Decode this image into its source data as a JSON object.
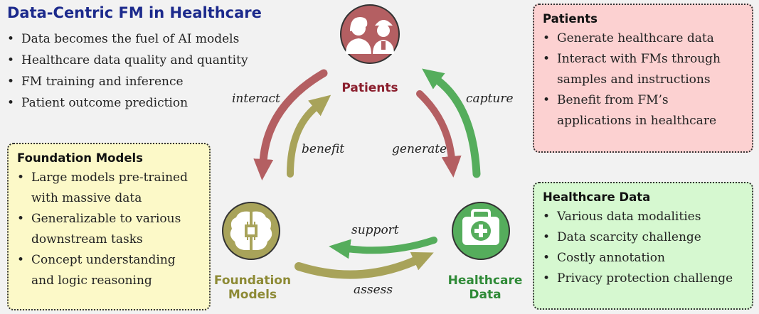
{
  "title": "Data-Centric FM in Healthcare",
  "intro": [
    "Data becomes the fuel of AI models",
    "Healthcare data quality and quantity",
    "FM training and inference",
    "Patient outcome prediction"
  ],
  "nodes": {
    "patients": "Patients",
    "fm_line1": "Foundation",
    "fm_line2": "Models",
    "hd_line1": "Healthcare",
    "hd_line2": "Data"
  },
  "edge_labels": {
    "interact": "interact",
    "benefit": "benefit",
    "generate": "generate",
    "capture": "capture",
    "support": "support",
    "assess": "assess"
  },
  "boxes": {
    "patients": {
      "title": "Patients",
      "items": [
        "Generate healthcare data",
        "Interact with FMs through samples and instructions",
        "Benefit from FM’s applications in healthcare"
      ]
    },
    "foundation_models": {
      "title": "Foundation Models",
      "items": [
        "Large models pre-trained with massive data",
        "Generalizable to various downstream tasks",
        "Concept understanding and logic reasoning"
      ]
    },
    "healthcare_data": {
      "title": "Healthcare Data",
      "items": [
        "Various data modalities",
        "Data scarcity challenge",
        "Costly annotation",
        "Privacy protection challenge"
      ]
    }
  },
  "colors": {
    "title": "#1c2a8c",
    "patients": "#b45f62",
    "patients_label": "#8b1f2e",
    "foundation": "#a8a35a",
    "foundation_label": "#8d8a35",
    "healthcare": "#55ad5c",
    "healthcare_label": "#2f8a37"
  }
}
